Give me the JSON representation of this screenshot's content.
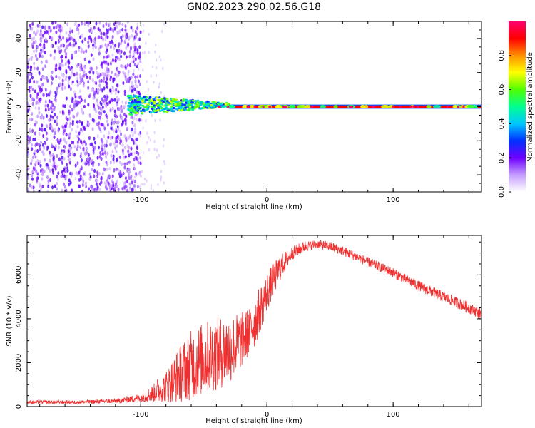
{
  "figure_title": "GN02.2023.290.02.56.G18",
  "chart_data": [
    {
      "type": "heatmap",
      "title": "",
      "xlabel": "Height of straight line (km)",
      "ylabel": "Frequency (Hz)",
      "xlim": [
        -190,
        170
      ],
      "ylim": [
        -50,
        50
      ],
      "xticks": [
        -100,
        0,
        100
      ],
      "yticks": [
        -40,
        -20,
        0,
        20,
        40
      ],
      "colorbar": {
        "label": "Normalized spectral amplitude",
        "range": [
          0,
          1
        ],
        "ticks": [
          "0.0",
          "0.2",
          "0.4",
          "0.6",
          "0.8"
        ],
        "tick_values": [
          0,
          0.2,
          0.4,
          0.6,
          0.8
        ],
        "colors": [
          "#ffffff",
          "#c59cff",
          "#6e00ff",
          "#0030ff",
          "#00c8ff",
          "#00ff90",
          "#50ff00",
          "#ffff00",
          "#ff9000",
          "#ff0000",
          "#ff0070"
        ]
      },
      "regions": [
        {
          "description": "broadband noise",
          "x": [
            -190,
            -110
          ],
          "freq_spread": [
            -50,
            50
          ],
          "amplitude": 0.12
        },
        {
          "description": "fading onset",
          "x": [
            -110,
            -30
          ],
          "freq_spread": [
            -5,
            5
          ],
          "amplitude": 0.5
        },
        {
          "description": "stable carrier",
          "x": [
            -30,
            170
          ],
          "freq_spread": [
            -1,
            1
          ],
          "amplitude": 0.9
        }
      ]
    },
    {
      "type": "line",
      "title": "",
      "xlabel": "Height of straight line (km)",
      "ylabel": "SNR (10 * v/v)",
      "xlim": [
        -190,
        170
      ],
      "ylim": [
        0,
        7800
      ],
      "xticks": [
        -100,
        0,
        100
      ],
      "yticks": [
        0,
        2000,
        4000,
        6000
      ],
      "series": [
        {
          "color": "#f03030",
          "x": [
            -190,
            -150,
            -120,
            -100,
            -90,
            -80,
            -70,
            -60,
            -50,
            -40,
            -30,
            -20,
            -10,
            0,
            10,
            20,
            30,
            40,
            50,
            60,
            80,
            100,
            120,
            140,
            160,
            170
          ],
          "y": [
            200,
            200,
            250,
            400,
            600,
            1000,
            1600,
            2100,
            2400,
            2600,
            2800,
            3200,
            3800,
            5200,
            6300,
            7000,
            7300,
            7400,
            7300,
            7100,
            6600,
            6100,
            5500,
            5000,
            4500,
            4200
          ],
          "noise_amplitude": [
            80,
            80,
            100,
            200,
            400,
            900,
            1600,
            2000,
            2100,
            2100,
            2000,
            1600,
            1200,
            900,
            600,
            300,
            250,
            200,
            220,
            220,
            220,
            220,
            240,
            250,
            260,
            260
          ]
        }
      ]
    }
  ]
}
